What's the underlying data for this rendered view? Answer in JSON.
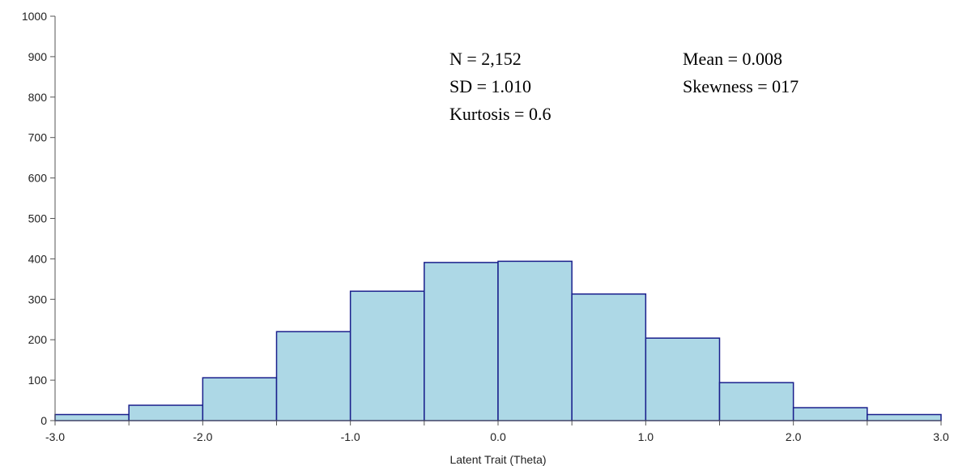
{
  "chart_data": {
    "type": "bar",
    "title": "",
    "xlabel": "Latent Trait (Theta)",
    "ylabel": "",
    "xlim": [
      -3.0,
      3.0
    ],
    "ylim": [
      0,
      1000
    ],
    "x_ticks": [
      -3.0,
      -2.0,
      -1.0,
      0.0,
      1.0,
      2.0,
      3.0
    ],
    "x_tick_labels": [
      "-3.0",
      "-2.0",
      "-1.0",
      "0.0",
      "1.0",
      "2.0",
      "3.0"
    ],
    "y_ticks": [
      0,
      100,
      200,
      300,
      400,
      500,
      600,
      700,
      800,
      900,
      1000
    ],
    "y_tick_labels": [
      "0",
      "100",
      "200",
      "300",
      "400",
      "500",
      "600",
      "700",
      "800",
      "900",
      "1000"
    ],
    "bin_edges": [
      -3.0,
      -2.5,
      -2.0,
      -1.5,
      -1.0,
      -0.5,
      0.0,
      0.5,
      1.0,
      1.5,
      2.0,
      2.5,
      3.0
    ],
    "values": [
      15,
      38,
      106,
      220,
      320,
      391,
      394,
      313,
      204,
      94,
      32,
      15
    ],
    "grid": false,
    "bar_fill": "#add8e6",
    "bar_edge": "#1a1f8c",
    "annotations": {
      "n": "N = 2,152",
      "sd": "SD = 1.010",
      "kurtosis": "Kurtosis = 0.6",
      "mean": "Mean = 0.008",
      "skewness": "Skewness = 017"
    }
  }
}
